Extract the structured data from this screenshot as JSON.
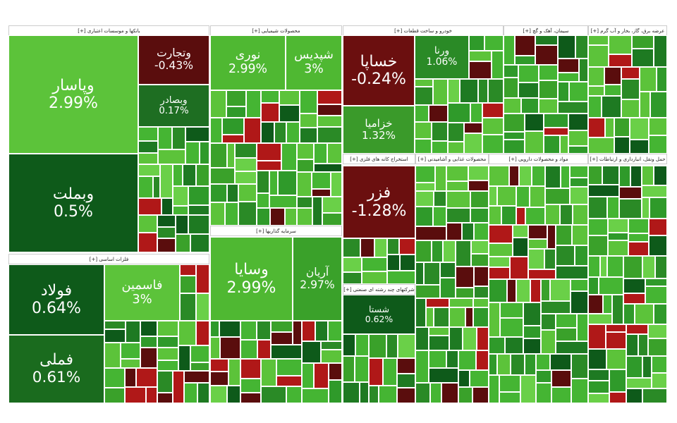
{
  "sectors": [
    {
      "title": "بانکها و موسسات اعتباری [+]",
      "tiles": [
        {
          "name": "وپاسار",
          "change": "2.99%"
        },
        {
          "name": "وبملت",
          "change": "0.5%"
        },
        {
          "name": "وتجارت",
          "change": "-0.43%"
        },
        {
          "name": "وبصادر",
          "change": "0.17%"
        }
      ]
    },
    {
      "title": "فلزات اساسی [+]",
      "tiles": [
        {
          "name": "فولاد",
          "change": "0.64%"
        },
        {
          "name": "فملی",
          "change": "0.61%"
        },
        {
          "name": "فاسمین",
          "change": "3%"
        }
      ]
    },
    {
      "title": "محصولات شیمیایی [+]",
      "tiles": [
        {
          "name": "نوری",
          "change": "2.99%"
        },
        {
          "name": "شپدیس",
          "change": "3%"
        }
      ]
    },
    {
      "title": "سرمایه گذاریها [+]",
      "tiles": [
        {
          "name": "وسایا",
          "change": "2.99%"
        },
        {
          "name": "آریان",
          "change": "2.97%"
        }
      ]
    },
    {
      "title": "خودرو و ساخت قطعات [+]",
      "tiles": [
        {
          "name": "خساپا",
          "change": "-0.24%"
        },
        {
          "name": "خزامیا",
          "change": "1.32%"
        },
        {
          "name": "ورنا",
          "change": "1.06%"
        }
      ]
    },
    {
      "title": "سیمان، آهک و گچ [+]",
      "tiles": []
    },
    {
      "title": "عرضه برق، گاز، بخار و آب گرم [+]",
      "tiles": []
    },
    {
      "title": "استخراج کانه های فلزی [+]",
      "tiles": [
        {
          "name": "فزر",
          "change": "-1.28%"
        }
      ]
    },
    {
      "title": "شرکتهای چند رشته ای صنعتی [+]",
      "tiles": [
        {
          "name": "شستا",
          "change": "0.62%"
        }
      ]
    },
    {
      "title": "محصولات غذایی و آشامیدنی [+]",
      "tiles": []
    },
    {
      "title": "مواد و محصولات دارویی [+]",
      "tiles": []
    },
    {
      "title": "حمل ونقل، انبارداری و ارتباطات [+]",
      "tiles": []
    }
  ]
}
